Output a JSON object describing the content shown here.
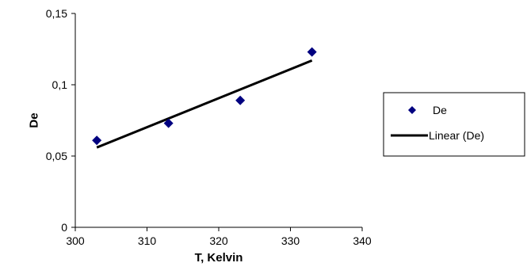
{
  "chart_data": {
    "type": "scatter",
    "xlabel": "T, Kelvin",
    "ylabel": "De",
    "xlim": [
      300,
      340
    ],
    "ylim": [
      0,
      0.15
    ],
    "x_ticks": [
      300,
      310,
      320,
      330,
      340
    ],
    "y_ticks": [
      0,
      0.05,
      0.1,
      0.15
    ],
    "x_tick_labels": [
      "300",
      "310",
      "320",
      "330",
      "340"
    ],
    "y_tick_labels": [
      "0",
      "0,05",
      "0,1",
      "0,15"
    ],
    "grid": false,
    "legend_position": "right",
    "series": [
      {
        "name": "De",
        "kind": "scatter",
        "marker": "diamond",
        "color": "#000080",
        "x": [
          303,
          313,
          323,
          333
        ],
        "y": [
          0.061,
          0.073,
          0.089,
          0.123
        ]
      },
      {
        "name": "Linear (De)",
        "kind": "trendline",
        "color": "#000000",
        "x": [
          303,
          333
        ],
        "y": [
          0.056,
          0.117
        ]
      }
    ]
  }
}
